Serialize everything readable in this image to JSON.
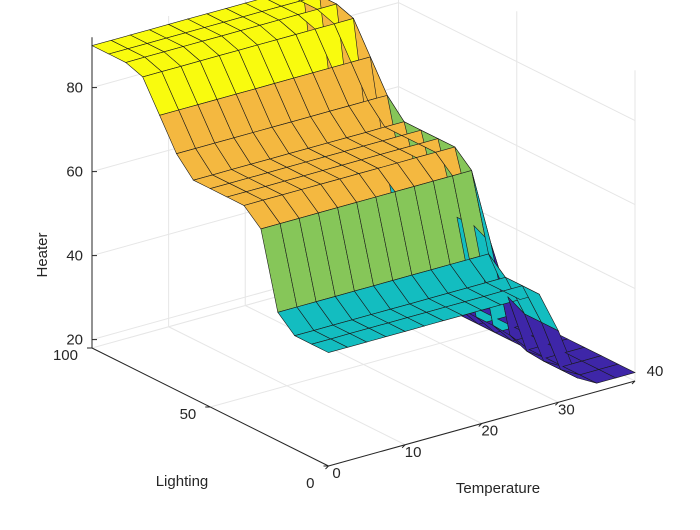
{
  "chart_data": {
    "type": "surface",
    "title": "",
    "xlabel": "Temperature",
    "ylabel": "Lighting",
    "zlabel": "Heater",
    "xlim": [
      0,
      40
    ],
    "ylim": [
      0,
      100
    ],
    "zlim": [
      18,
      92
    ],
    "xticks": [
      "0",
      "10",
      "20",
      "30",
      "40"
    ],
    "yticks": [
      "0",
      "50",
      "100"
    ],
    "zticks": [
      "20",
      "40",
      "60",
      "80"
    ],
    "grid": true,
    "colormap": "parula",
    "surface_description_points": {
      "temperature": [
        0,
        5,
        10,
        15,
        20,
        25,
        30,
        35,
        40
      ],
      "lighting": [
        0,
        50,
        100
      ],
      "heater_low_temp_high_light": 90,
      "heater_mid_plateau": 70,
      "heater_step_low": 45,
      "heater_high_temp": 20
    },
    "colors": {
      "yellow": "#f9fb0e",
      "orange": "#f4b840",
      "green": "#86c659",
      "cyan": "#13bdc0",
      "blue": "#3e26a8"
    }
  }
}
